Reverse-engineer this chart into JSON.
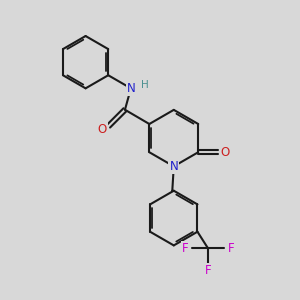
{
  "bg_color": "#d8d8d8",
  "bond_color": "#1a1a1a",
  "N_color": "#2020cc",
  "O_color": "#cc2020",
  "F_color": "#cc00cc",
  "NH_color": "#4a9090",
  "figsize": [
    3.0,
    3.0
  ],
  "dpi": 100,
  "lw1": 1.5,
  "lw2": 1.3,
  "dbl_off": 0.07,
  "fs": 8.5,
  "fsH": 7.5,
  "xlim": [
    0,
    10
  ],
  "ylim": [
    0,
    10
  ]
}
